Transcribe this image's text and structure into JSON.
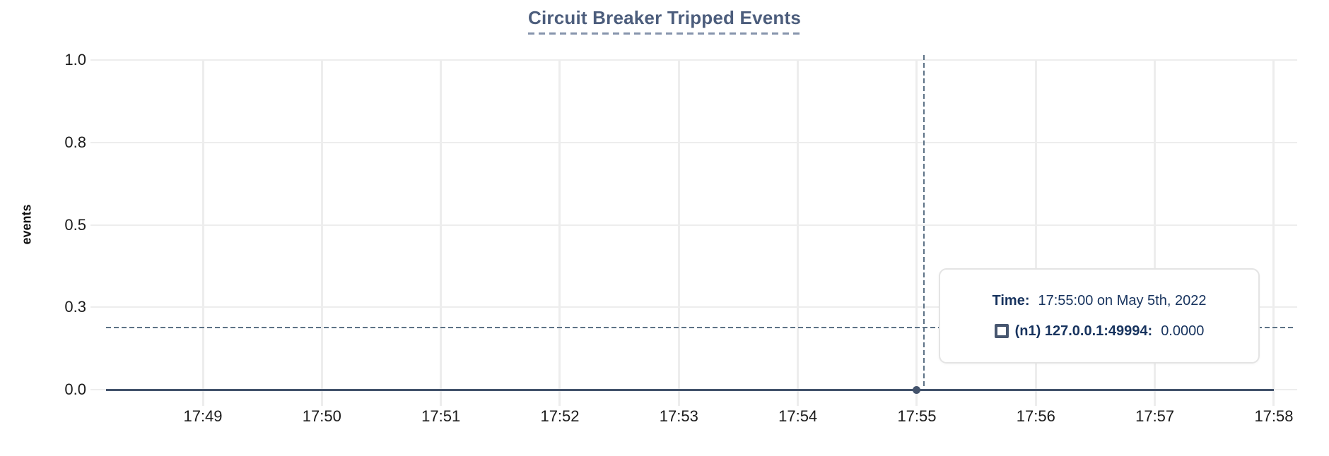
{
  "chart_data": {
    "type": "line",
    "title": "Circuit Breaker Tripped Events",
    "ylabel": "events",
    "xlabel": "",
    "ylim": [
      0,
      1
    ],
    "grid": true,
    "legend_position": "tooltip",
    "x_ticks": [
      "17:49",
      "17:50",
      "17:51",
      "17:52",
      "17:53",
      "17:54",
      "17:55",
      "17:56",
      "17:57",
      "17:58"
    ],
    "y_ticks": [
      {
        "value": 1.0,
        "label": "1.0"
      },
      {
        "value": 0.75,
        "label": "0.8"
      },
      {
        "value": 0.5,
        "label": "0.5"
      },
      {
        "value": 0.25,
        "label": "0.3"
      },
      {
        "value": 0.0,
        "label": "0.0"
      }
    ],
    "series": [
      {
        "name": "(n1) 127.0.0.1:49994",
        "color": "#43536c",
        "categories": [
          "17:49",
          "17:50",
          "17:51",
          "17:52",
          "17:53",
          "17:54",
          "17:55",
          "17:56",
          "17:57",
          "17:58"
        ],
        "values": [
          0,
          0,
          0,
          0,
          0,
          0,
          0,
          0,
          0,
          0
        ]
      }
    ],
    "selected_point": {
      "x": "17:55",
      "y": 0,
      "series": "(n1) 127.0.0.1:49994"
    }
  },
  "tooltip": {
    "time_label": "Time:",
    "time_value": "17:55:00 on May 5th, 2022",
    "series_label": "(n1) 127.0.0.1:49994:",
    "series_value": "0.0000"
  },
  "colors": {
    "title": "#4c5d7c",
    "title_underline": "#8694ac",
    "grid": "#ededed",
    "series": "#43536c",
    "crosshair": "#5d7286",
    "tooltip_text": "#17335e",
    "tooltip_border": "#e4e4e4",
    "axis_text": "#1b1b1b"
  }
}
